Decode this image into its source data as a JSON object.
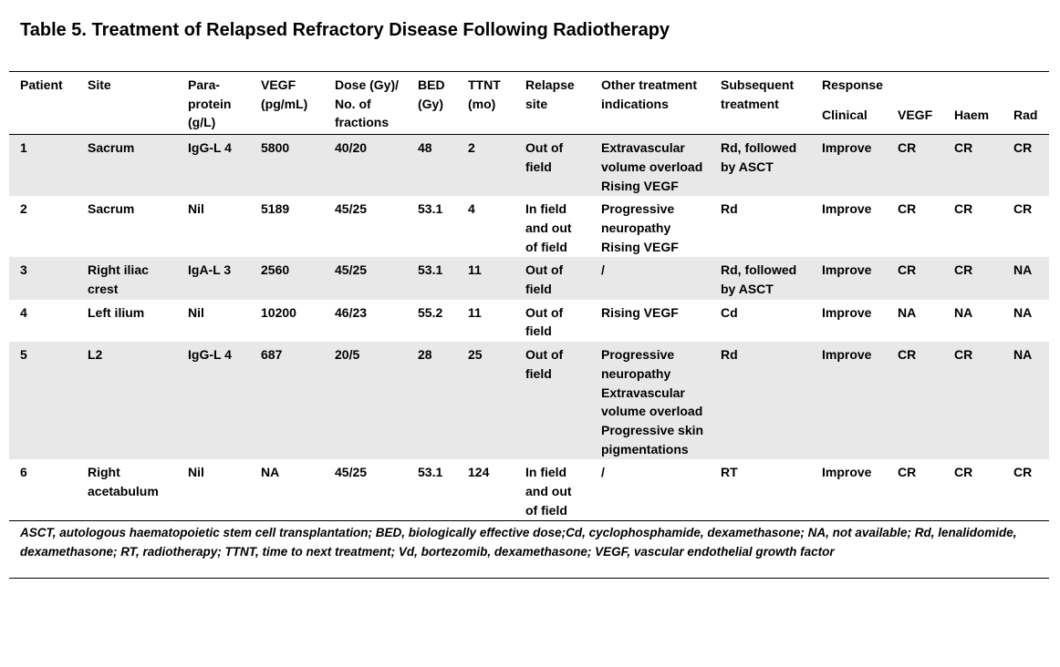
{
  "title": "Table 5. Treatment of Relapsed Refractory Disease Following Radiotherapy",
  "table": {
    "columns": [
      "Patient",
      "Site",
      "Para-protein (g/L)",
      "VEGF (pg/mL)",
      "Dose (Gy)/ No. of fractions",
      "BED (Gy)",
      "TTNT (mo)",
      "Relapse site",
      "Other treatment indications",
      "Subsequent treatment"
    ],
    "group": {
      "label": "Response",
      "columns": [
        "Clinical",
        "VEGF",
        "Haem",
        "Rad"
      ]
    },
    "rows": [
      [
        "1",
        "Sacrum",
        "IgG-L 4",
        "5800",
        "40/20",
        "48",
        "2",
        "Out of field",
        [
          "Extravascular volume overload",
          "Rising VEGF"
        ],
        "Rd, followed by ASCT",
        "Improve",
        "CR",
        "CR",
        "CR"
      ],
      [
        "2",
        "Sacrum",
        "Nil",
        "5189",
        "45/25",
        "53.1",
        "4",
        "In field and out of field",
        [
          "Progressive neuropathy",
          "Rising VEGF"
        ],
        "Rd",
        "Improve",
        "CR",
        "CR",
        "CR"
      ],
      [
        "3",
        "Right iliac crest",
        "IgA-L 3",
        "2560",
        "45/25",
        "53.1",
        "11",
        "Out of field",
        "/",
        "Rd, followed by ASCT",
        "Improve",
        "CR",
        "CR",
        "NA"
      ],
      [
        "4",
        "Left ilium",
        "Nil",
        "10200",
        "46/23",
        "55.2",
        "11",
        "Out of field",
        "Rising VEGF",
        "Cd",
        "Improve",
        "NA",
        "NA",
        "NA"
      ],
      [
        "5",
        "L2",
        "IgG-L 4",
        "687",
        "20/5",
        "28",
        "25",
        "Out of field",
        [
          "Progressive neuropathy",
          "Extravascular volume overload",
          "Progressive skin pigmentations"
        ],
        "Rd",
        "Improve",
        "CR",
        "CR",
        "NA"
      ],
      [
        "6",
        "Right acetabulum",
        "Nil",
        "NA",
        "45/25",
        "53.1",
        "124",
        "In field and out of field",
        "/",
        "RT",
        "Improve",
        "CR",
        "CR",
        "CR"
      ]
    ]
  },
  "footnote": "ASCT, autologous haematopoietic stem cell transplantation; BED, biologically effective dose;Cd, cyclophosphamide, dexamethasone; NA, not available; Rd, lenalidomide, dexamethasone; RT, radiotherapy; TTNT, time to next treatment; Vd, bortezomib, dexamethasone; VEGF, vascular endothelial growth factor"
}
